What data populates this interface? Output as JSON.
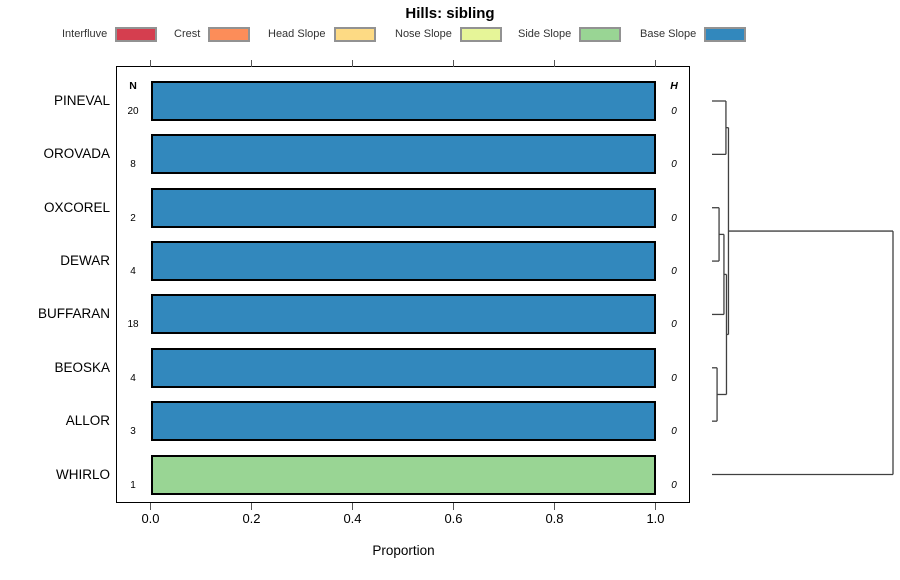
{
  "title": "Hills: sibling",
  "legend": {
    "items": [
      {
        "label": "Interfluve",
        "color": "#d53e4f"
      },
      {
        "label": "Crest",
        "color": "#fc8d59"
      },
      {
        "label": "Head Slope",
        "color": "#fdda84"
      },
      {
        "label": "Nose Slope",
        "color": "#e6f598"
      },
      {
        "label": "Side Slope",
        "color": "#99d594"
      },
      {
        "label": "Base Slope",
        "color": "#3288bd"
      }
    ]
  },
  "chart_data": {
    "type": "bar",
    "orientation": "horizontal",
    "stacked": true,
    "title": "Hills: sibling",
    "xlabel": "Proportion",
    "xlim": [
      0,
      1
    ],
    "x_ticks": [
      "0.0",
      "0.2",
      "0.4",
      "0.6",
      "0.8",
      "1.0"
    ],
    "grid": false,
    "legend_position": "top",
    "n_column_header": "N",
    "h_column_header": "H",
    "rows": [
      {
        "name": "PINEVAL",
        "n": "20",
        "h": "0",
        "segments": [
          {
            "label": "Base Slope",
            "value": 1.0
          }
        ]
      },
      {
        "name": "OROVADA",
        "n": "8",
        "h": "0",
        "segments": [
          {
            "label": "Base Slope",
            "value": 1.0
          }
        ]
      },
      {
        "name": "OXCOREL",
        "n": "2",
        "h": "0",
        "segments": [
          {
            "label": "Base Slope",
            "value": 1.0
          }
        ]
      },
      {
        "name": "DEWAR",
        "n": "4",
        "h": "0",
        "segments": [
          {
            "label": "Base Slope",
            "value": 1.0
          }
        ]
      },
      {
        "name": "BUFFARAN",
        "n": "18",
        "h": "0",
        "segments": [
          {
            "label": "Base Slope",
            "value": 1.0
          }
        ]
      },
      {
        "name": "BEOSKA",
        "n": "4",
        "h": "0",
        "segments": [
          {
            "label": "Base Slope",
            "value": 1.0
          }
        ]
      },
      {
        "name": "ALLOR",
        "n": "3",
        "h": "0",
        "segments": [
          {
            "label": "Base Slope",
            "value": 1.0
          }
        ]
      },
      {
        "name": "WHIRLO",
        "n": "1",
        "h": "0",
        "segments": [
          {
            "label": "Side Slope",
            "value": 1.0
          }
        ]
      }
    ],
    "dendrogram": {
      "side": "right",
      "leaf_order": [
        "PINEVAL",
        "OROVADA",
        "OXCOREL",
        "DEWAR",
        "BUFFARAN",
        "BEOSKA",
        "ALLOR",
        "WHIRLO"
      ],
      "segments": [
        [
          0,
          0,
          0.077,
          0
        ],
        [
          0,
          1,
          0.077,
          1
        ],
        [
          0.077,
          0,
          0.077,
          1
        ],
        [
          0.077,
          0.5,
          0.091,
          0.5
        ],
        [
          0,
          2,
          0.039,
          2
        ],
        [
          0,
          3,
          0.039,
          3
        ],
        [
          0.039,
          2,
          0.039,
          3
        ],
        [
          0.039,
          2.5,
          0.066,
          2.5
        ],
        [
          0,
          4,
          0.066,
          4
        ],
        [
          0.066,
          2.5,
          0.066,
          4
        ],
        [
          0.066,
          3.25,
          0.08,
          3.25
        ],
        [
          0,
          5,
          0.028,
          5
        ],
        [
          0,
          6,
          0.028,
          6
        ],
        [
          0.028,
          5,
          0.028,
          6
        ],
        [
          0.028,
          5.5,
          0.08,
          5.5
        ],
        [
          0.08,
          3.25,
          0.08,
          5.5
        ],
        [
          0.08,
          4.375,
          0.091,
          4.375
        ],
        [
          0.091,
          0.5,
          0.091,
          4.375
        ],
        [
          0.091,
          2.4375,
          1,
          2.4375
        ],
        [
          0,
          7,
          1,
          7
        ],
        [
          1,
          2.4375,
          1,
          7
        ]
      ]
    }
  }
}
